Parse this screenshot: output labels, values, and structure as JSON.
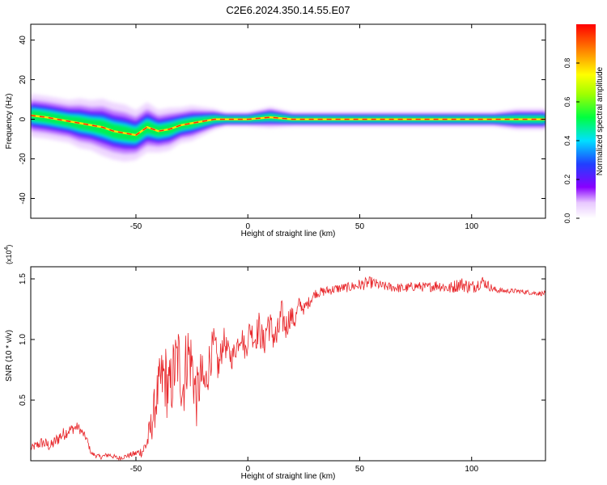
{
  "title": "C2E6.2024.350.14.55.E07",
  "colors": {
    "trace": "#e8262a",
    "axis": "#000000"
  },
  "chart_data": [
    {
      "type": "heatmap",
      "xlabel": "Height of straight line (km)",
      "ylabel": "Frequency (Hz)",
      "xlim": [
        -97,
        133
      ],
      "ylim": [
        -50,
        48
      ],
      "xticks": [
        -50,
        0,
        50,
        100
      ],
      "xtick_labels": [
        "-50",
        "0",
        "50",
        "100"
      ],
      "yticks": [
        -40,
        -20,
        0,
        20,
        40
      ],
      "ytick_labels": [
        "-40",
        "-20",
        "0",
        "20",
        "40"
      ],
      "colorbar": {
        "label": "Normalized spectral amplitude",
        "range": [
          0,
          1
        ],
        "ticks": [
          0.0,
          0.2,
          0.4,
          0.6,
          0.8
        ],
        "tick_labels": [
          "0.0",
          "0.2",
          "0.4",
          "0.6",
          "0.8"
        ],
        "colormap": "rainbow"
      },
      "ridge": {
        "x": [
          -97,
          -90,
          -85,
          -80,
          -75,
          -70,
          -65,
          -60,
          -55,
          -50,
          -45,
          -40,
          -35,
          -30,
          -25,
          -20,
          -15,
          -10,
          0,
          10,
          20,
          30,
          40,
          50,
          60,
          70,
          80,
          90,
          100,
          110,
          120,
          133
        ],
        "frequency": [
          2,
          1,
          0,
          -1,
          -2,
          -3,
          -4,
          -6,
          -7,
          -8,
          -4,
          -6,
          -5,
          -3,
          -2,
          -1,
          0,
          0,
          0,
          1,
          0,
          0,
          0,
          0,
          0,
          0,
          0,
          0,
          0,
          0,
          0,
          0
        ],
        "band_halfwidth": [
          6,
          6,
          6,
          6,
          7,
          7,
          8,
          8,
          8,
          7,
          7,
          6,
          6,
          5,
          5,
          4,
          3,
          2,
          2,
          3,
          2,
          2,
          2,
          2,
          2,
          2,
          2,
          2,
          2,
          2,
          3,
          3
        ]
      }
    },
    {
      "type": "line",
      "xlabel": "Height of straight line (km)",
      "ylabel": "SNR (10 * v/v)",
      "y_multiplier": "(x10",
      "y_multiplier_exp": "4",
      "y_multiplier_close": ")",
      "xlim": [
        -97,
        133
      ],
      "ylim": [
        0,
        1.6
      ],
      "xticks": [
        -50,
        0,
        50,
        100
      ],
      "xtick_labels": [
        "-50",
        "0",
        "50",
        "100"
      ],
      "yticks": [
        0.5,
        1.0,
        1.5
      ],
      "ytick_labels": [
        "0.5",
        "1.0",
        "1.5"
      ],
      "series": [
        {
          "x": [
            -97,
            -92,
            -88,
            -84,
            -80,
            -76,
            -72,
            -70,
            -66,
            -62,
            -58,
            -54,
            -50,
            -47,
            -45,
            -43,
            -41,
            -39,
            -37,
            -35,
            -33,
            -31,
            -29,
            -27,
            -25,
            -23,
            -21,
            -19,
            -17,
            -15,
            -13,
            -11,
            -9,
            -7,
            -5,
            -3,
            -1,
            1,
            3,
            5,
            7,
            9,
            11,
            13,
            15,
            17,
            19,
            21,
            23,
            25,
            27,
            30,
            35,
            40,
            45,
            50,
            55,
            60,
            65,
            70,
            75,
            80,
            85,
            90,
            95,
            100,
            105,
            110,
            115,
            120,
            125,
            130,
            133
          ],
          "y": [
            0.1,
            0.15,
            0.12,
            0.2,
            0.25,
            0.28,
            0.18,
            0.06,
            0.03,
            0.05,
            0.02,
            0.04,
            0.06,
            0.08,
            0.15,
            0.3,
            0.5,
            0.65,
            0.7,
            0.55,
            0.75,
            0.85,
            0.6,
            0.9,
            0.8,
            0.5,
            0.7,
            0.6,
            0.85,
            0.95,
            0.75,
            1.0,
            0.9,
            0.85,
            0.95,
            1.05,
            0.9,
            1.1,
            1.0,
            1.1,
            0.95,
            1.15,
            1.05,
            1.0,
            1.2,
            1.1,
            1.2,
            1.15,
            1.3,
            1.25,
            1.3,
            1.38,
            1.4,
            1.42,
            1.43,
            1.45,
            1.47,
            1.44,
            1.43,
            1.42,
            1.44,
            1.43,
            1.45,
            1.42,
            1.46,
            1.43,
            1.48,
            1.41,
            1.4,
            1.4,
            1.39,
            1.38,
            1.38
          ],
          "noise": [
            0.03,
            0.05,
            0.05,
            0.06,
            0.05,
            0.04,
            0.03,
            0.02,
            0.02,
            0.02,
            0.02,
            0.02,
            0.03,
            0.05,
            0.1,
            0.15,
            0.2,
            0.25,
            0.3,
            0.3,
            0.3,
            0.3,
            0.3,
            0.3,
            0.28,
            0.25,
            0.22,
            0.2,
            0.18,
            0.16,
            0.15,
            0.12,
            0.1,
            0.1,
            0.1,
            0.1,
            0.1,
            0.1,
            0.12,
            0.14,
            0.14,
            0.14,
            0.15,
            0.15,
            0.14,
            0.12,
            0.1,
            0.08,
            0.06,
            0.05,
            0.05,
            0.04,
            0.04,
            0.04,
            0.04,
            0.05,
            0.05,
            0.04,
            0.04,
            0.04,
            0.04,
            0.04,
            0.05,
            0.05,
            0.06,
            0.06,
            0.05,
            0.03,
            0.02,
            0.02,
            0.02,
            0.02,
            0.02
          ]
        }
      ]
    }
  ]
}
